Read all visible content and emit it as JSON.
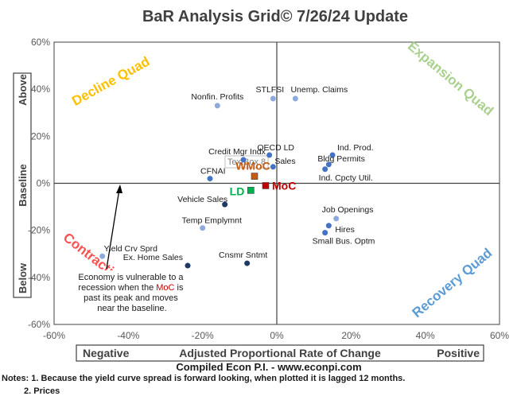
{
  "title": "BaR Analysis Grid© 7/26/24 Update",
  "source": "Compiled Econ P.I. - www.econpi.com",
  "notes_line1": "Notes: 1. Because the yield curve spread is forward looking, when plotted it is lagged 12 months.",
  "notes_line2": "2. Prices",
  "axis_bar": {
    "left": "Negative",
    "center": "Adjusted Proportional Rate of Change",
    "right": "Positive"
  },
  "side_bar": {
    "top": "Above",
    "middle": "Baseline",
    "bottom": "Below"
  },
  "quadrants": {
    "decline": "Decline Quad",
    "expansion": "Expansion Quad",
    "contraction": "Contraction Quad",
    "recovery": "Recovery Quad"
  },
  "annotation": {
    "line1": "Economy is vulnerable to a",
    "line2": "recession when the ",
    "line2_highlight": "MoC",
    "line2_end": " is",
    "line3": "past its peak and moves",
    "line4": "near the baseline."
  },
  "textbox_label": "TextBox 8",
  "colors": {
    "light_point": "#8ea9db",
    "mid_point": "#4472c4",
    "dark_point": "#203864",
    "moc": "#c00000",
    "wmoc": "#c55a11",
    "ld": "#00b050",
    "decline_quad": "#ffc000",
    "expansion_quad": "#a9d18e",
    "contraction_quad": "#ff5050",
    "recovery_quad": "#5b9bd5"
  },
  "chart_data": {
    "type": "scatter",
    "xlim": [
      -60,
      60
    ],
    "ylim": [
      -60,
      60
    ],
    "x_ticks": [
      "-60%",
      "-40%",
      "-20%",
      "0%",
      "20%",
      "40%",
      "60%"
    ],
    "y_ticks": [
      "60%",
      "40%",
      "20%",
      "0%",
      "-20%",
      "-40%",
      "-60%"
    ],
    "points": [
      {
        "label": "Nonfin. Profits",
        "x": -16,
        "y": 33,
        "color": "light_point"
      },
      {
        "label": "STLFSI",
        "x": -1,
        "y": 36,
        "color": "light_point"
      },
      {
        "label": "Unemp. Claims",
        "x": 5,
        "y": 36,
        "color": "light_point"
      },
      {
        "label": "Credit Mgr Indx",
        "x": -9,
        "y": 10,
        "color": "mid_point"
      },
      {
        "label": "OECD LD",
        "x": -2,
        "y": 12,
        "color": "mid_point"
      },
      {
        "label": "Sales",
        "x": -1,
        "y": 7,
        "color": "mid_point"
      },
      {
        "label": "Ind. Prod.",
        "x": 15,
        "y": 12,
        "color": "mid_point"
      },
      {
        "label": "Bldg Permits",
        "x": 14,
        "y": 8,
        "color": "mid_point"
      },
      {
        "label": "Ind. Cpcty Util.",
        "x": 13,
        "y": 6,
        "color": "mid_point"
      },
      {
        "label": "CFNAI",
        "x": -18,
        "y": 2,
        "color": "mid_point"
      },
      {
        "label": "Vehicle Sales",
        "x": -14,
        "y": -9,
        "color": "dark_point"
      },
      {
        "label": "Temp Emplymnt",
        "x": -20,
        "y": -19,
        "color": "light_point"
      },
      {
        "label": "Job Openings",
        "x": 16,
        "y": -15,
        "color": "light_point"
      },
      {
        "label": "Hires",
        "x": 14,
        "y": -18,
        "color": "mid_point"
      },
      {
        "label": "Small Bus. Optm",
        "x": 13,
        "y": -21,
        "color": "mid_point"
      },
      {
        "label": "Yield Crv Sprd",
        "x": -47,
        "y": -31,
        "color": "light_point"
      },
      {
        "label": "Ex. Home Sales",
        "x": -24,
        "y": -35,
        "color": "dark_point"
      },
      {
        "label": "Cnsmr Sntmt",
        "x": -8,
        "y": -34,
        "color": "dark_point"
      }
    ],
    "summary_points": [
      {
        "label": "MoC",
        "x": -3,
        "y": -1,
        "color": "moc"
      },
      {
        "label": "WMoC",
        "x": -6,
        "y": 3,
        "color": "wmoc"
      },
      {
        "label": "LD",
        "x": -7,
        "y": -3,
        "color": "ld"
      }
    ]
  }
}
